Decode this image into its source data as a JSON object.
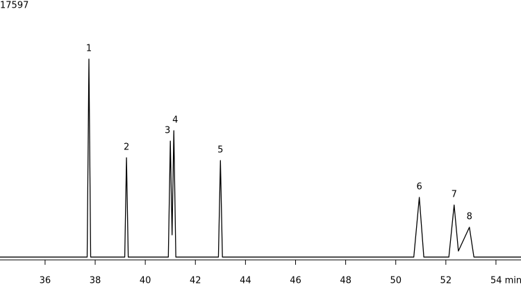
{
  "chart_data": {
    "type": "line",
    "x": [
      34.2,
      37.68,
      37.75,
      37.82,
      39.18,
      39.25,
      39.32,
      40.92,
      41.0,
      41.07,
      41.14,
      41.22,
      42.92,
      43.0,
      43.08,
      50.72,
      50.94,
      51.12,
      52.12,
      52.33,
      52.5,
      52.94,
      53.12,
      55.0
    ],
    "series": [
      {
        "color": "#000000",
        "values": [
          190,
          190,
          13598,
          190,
          190,
          6917,
          190,
          190,
          8046,
          1694,
          8752,
          190,
          190,
          6729,
          190,
          190,
          4235,
          190,
          190,
          3717,
          600,
          2211,
          190,
          190
        ]
      }
    ],
    "annotations": [
      {
        "text": "1",
        "x": 37.75,
        "y": 13598
      },
      {
        "text": "2",
        "x": 39.25,
        "y": 6917
      },
      {
        "text": "3",
        "x": 41.0,
        "y": 8046
      },
      {
        "text": "4",
        "x": 41.14,
        "y": 8752
      },
      {
        "text": "5",
        "x": 43.0,
        "y": 6729
      },
      {
        "text": "6",
        "x": 50.94,
        "y": 4235
      },
      {
        "text": "7",
        "x": 52.33,
        "y": 3717
      },
      {
        "text": "8",
        "x": 52.94,
        "y": 2211
      }
    ],
    "xlim": [
      34.2,
      55.0
    ],
    "xticks": [
      36,
      38,
      40,
      42,
      44,
      46,
      48,
      50,
      52,
      {
        "value": 54,
        "label": "54 min"
      }
    ],
    "ylim": [
      0,
      17597
    ],
    "yticks": [
      17597
    ]
  }
}
